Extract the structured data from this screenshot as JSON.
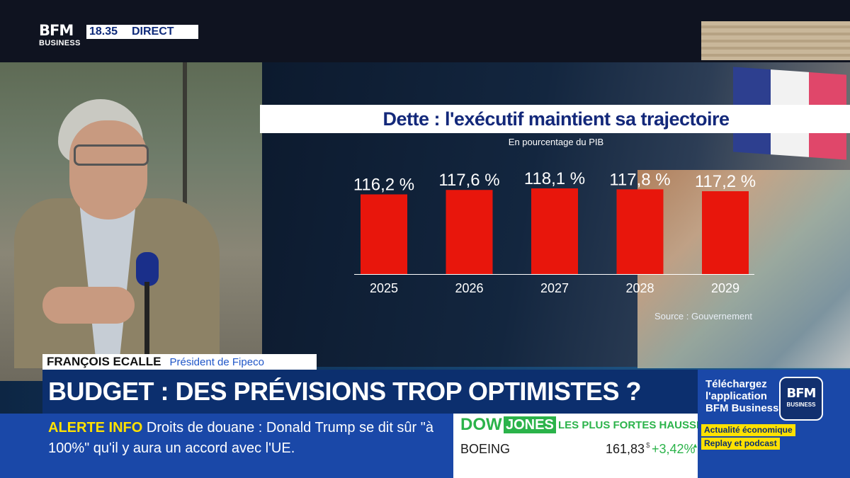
{
  "channel": {
    "logo_main": "BFM",
    "logo_sub": "BUSINESS",
    "time": "18.35",
    "live_label": "DIRECT"
  },
  "chart_data": {
    "type": "bar",
    "title": "Dette : l'exécutif maintient sa trajectoire",
    "subtitle": "En pourcentage du PIB",
    "categories": [
      "2025",
      "2026",
      "2027",
      "2028",
      "2029"
    ],
    "values": [
      116.2,
      117.6,
      118.1,
      117.8,
      117.2
    ],
    "value_labels": [
      "116,2 %",
      "117,6 %",
      "118,1 %",
      "117,8 %",
      "117,2 %"
    ],
    "source": "Source : Gouvernement",
    "bar_color": "#e8160c",
    "grid": false,
    "legend": "none"
  },
  "lower_third": {
    "guest_name": "FRANÇOIS ECALLE",
    "guest_role": "Président de Fipeco",
    "headline": "BUDGET : DES PRÉVISIONS TROP OPTIMISTES ?"
  },
  "ticker": {
    "label": "ALERTE INFO",
    "text": "Droits de douane : Donald Trump se dit sûr \"à 100%\" qu'il y aura un accord avec l'UE."
  },
  "market": {
    "index_part1": "DOW",
    "index_part2": "JONES",
    "heading": "LES PLUS FORTES HAUSSES",
    "stock": "BOEING",
    "price": "161,83",
    "currency": "$",
    "change": "+3,42",
    "change_unit": "%",
    "trend_icon": "arrow-up-icon"
  },
  "promo": {
    "text": "Téléchargez l'application BFM Business",
    "logo_main": "BFM",
    "logo_sub": "BUSINESS",
    "tag1": "Actualité économique",
    "tag2": "Replay et podcast"
  },
  "colors": {
    "navy": "#0c2f6e",
    "blue": "#1a48a8",
    "yellow": "#ffe100",
    "green": "#2bb34a",
    "red": "#e8160c"
  }
}
